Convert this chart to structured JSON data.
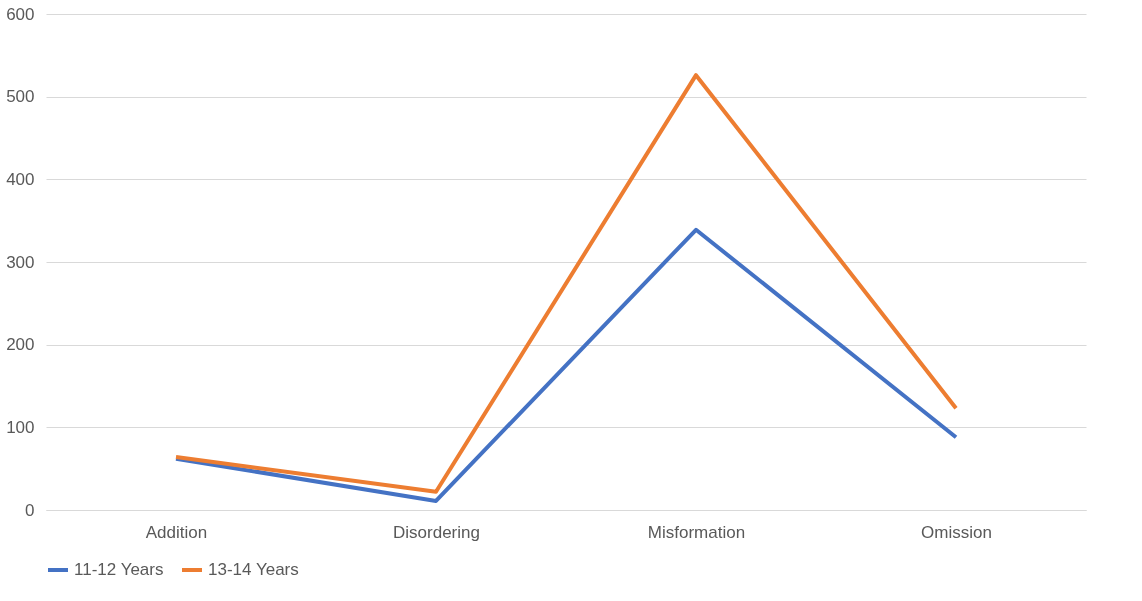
{
  "chart_data": {
    "type": "line",
    "categories": [
      "Addition",
      "Disordering",
      "Misformation",
      "Omission"
    ],
    "series": [
      {
        "name": "11-12 Years",
        "color": "#4472c4",
        "values": [
          62,
          11,
          339,
          88
        ]
      },
      {
        "name": "13-14 Years",
        "color": "#ed7d31",
        "values": [
          64,
          22,
          526,
          123
        ]
      }
    ],
    "ylim": [
      0,
      600
    ],
    "yticks": [
      0,
      100,
      200,
      300,
      400,
      500,
      600
    ],
    "grid": "y",
    "legend": "bottom",
    "marker": "none",
    "line_style": "solid"
  }
}
